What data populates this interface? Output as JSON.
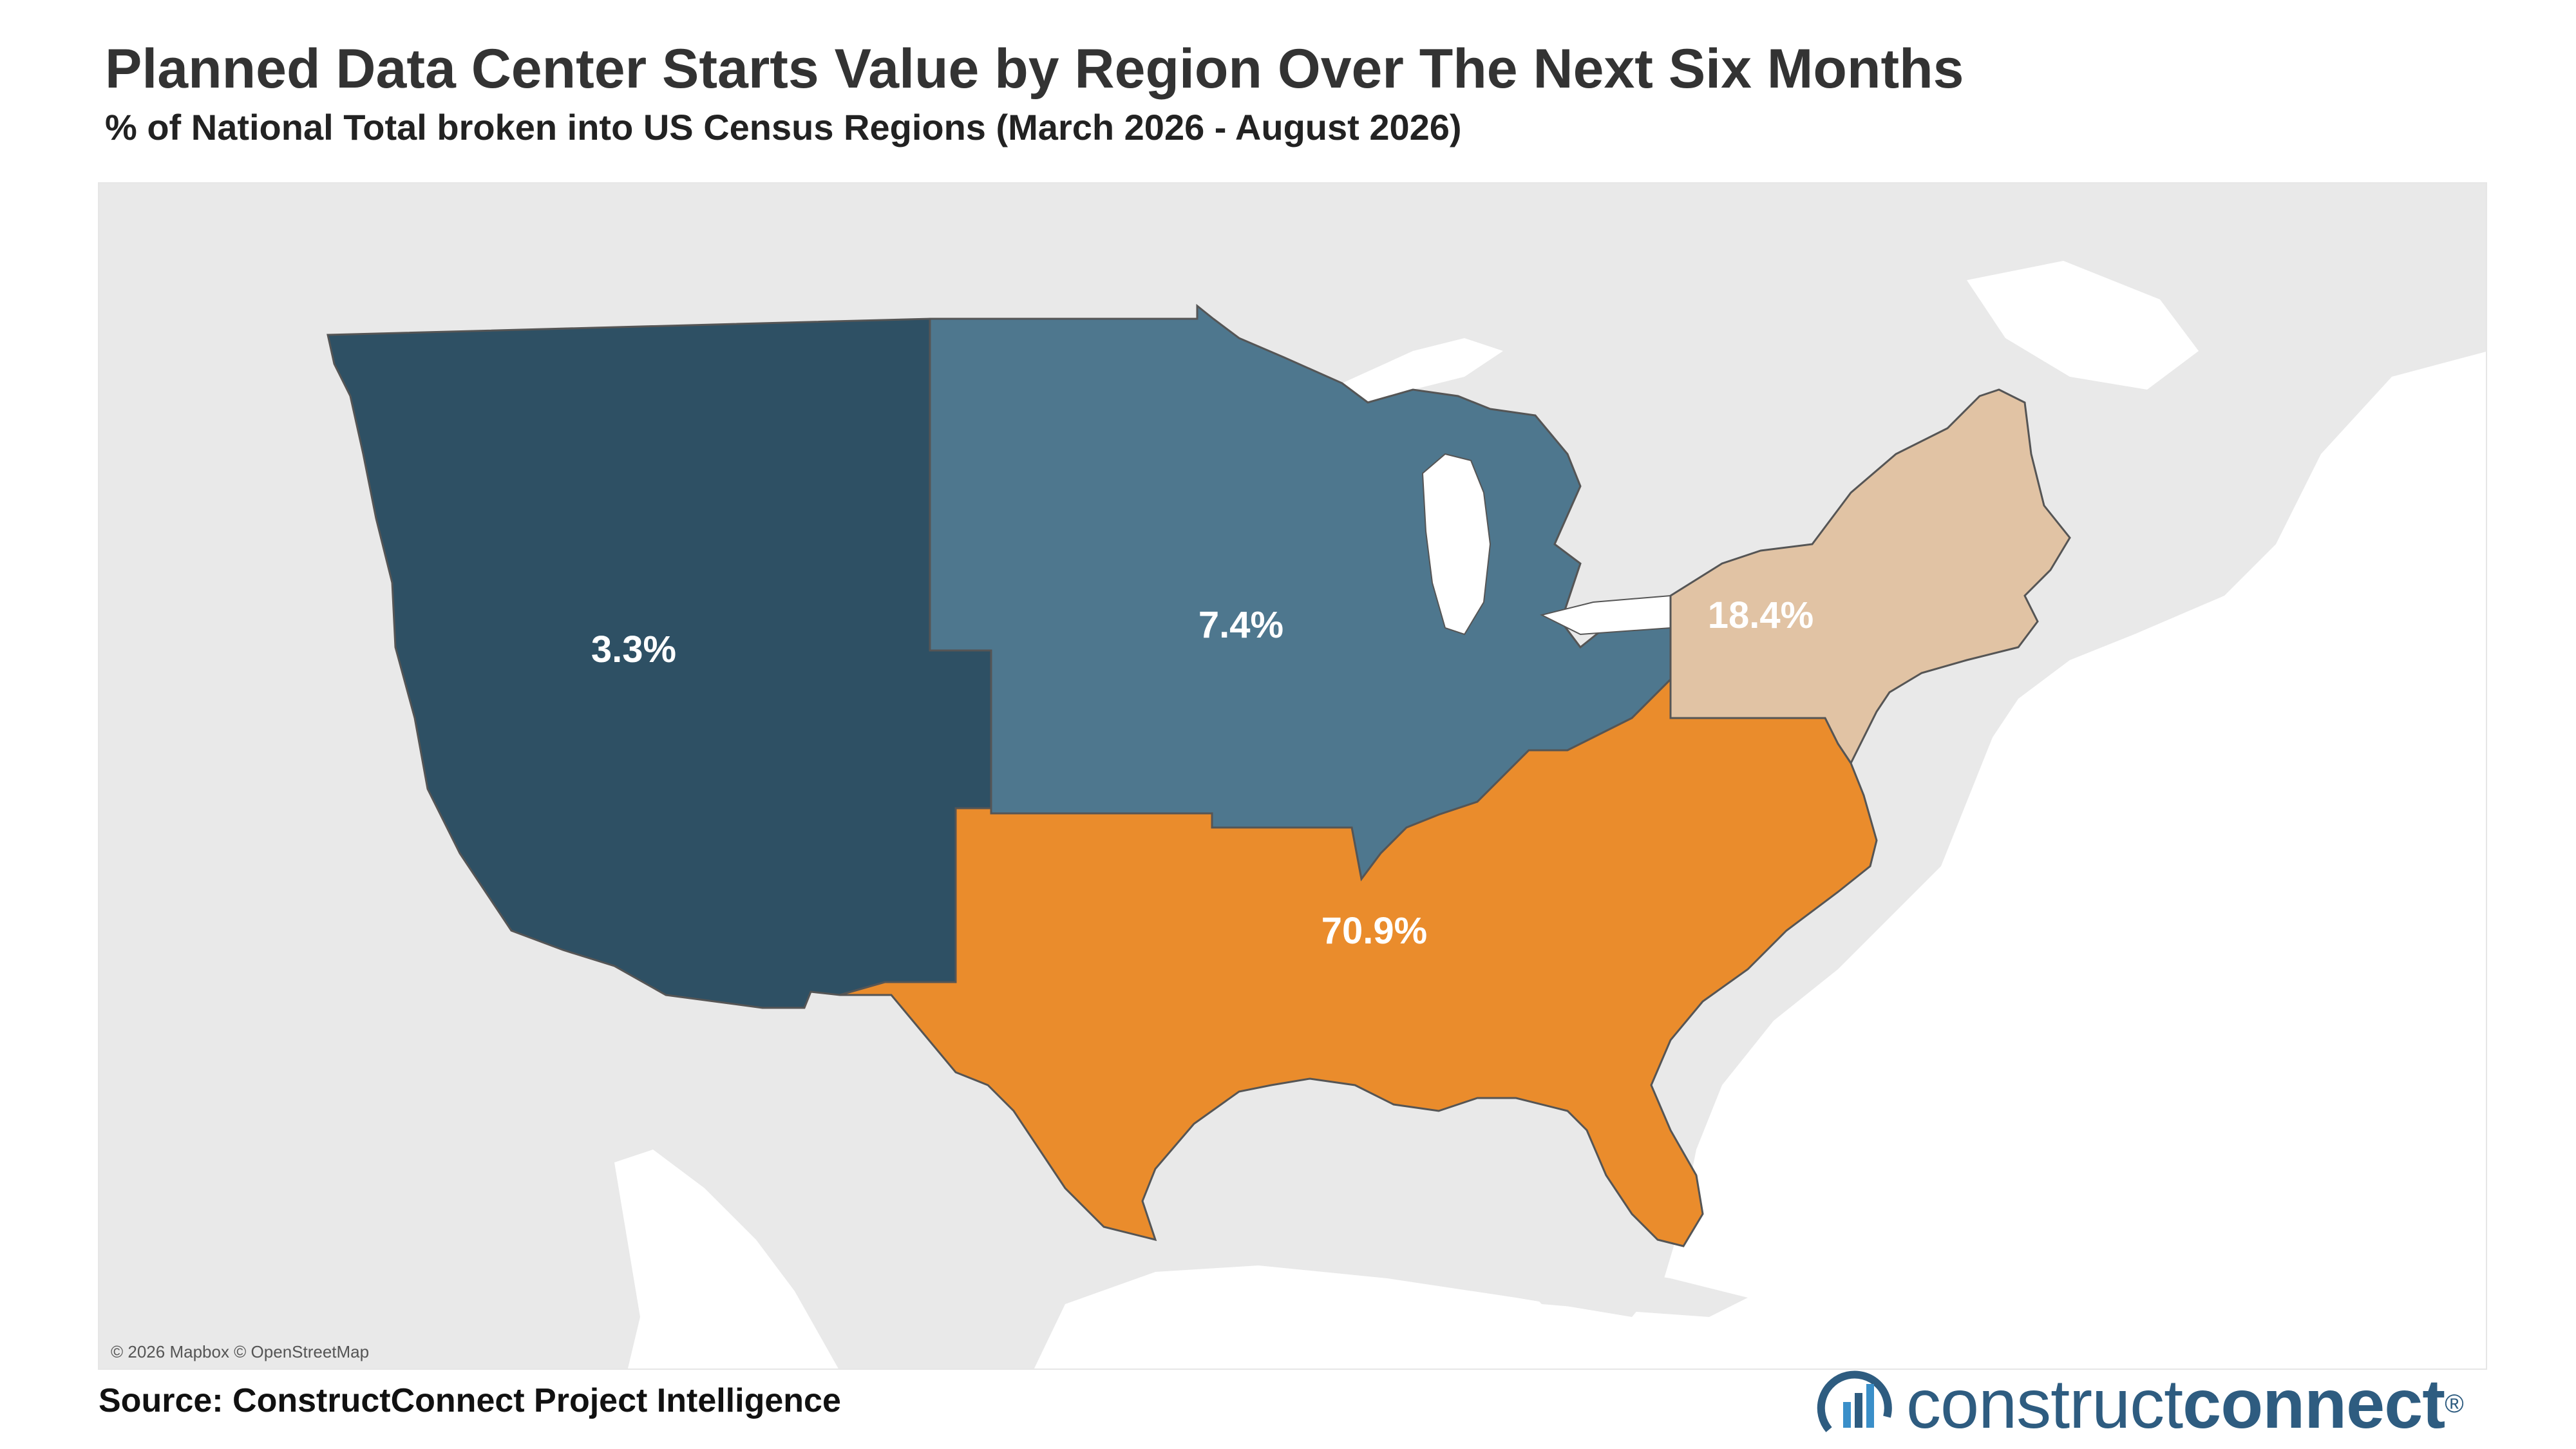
{
  "header": {
    "title": "Planned Data Center Starts Value by Region Over The Next Six Months",
    "subtitle": "% of National Total broken into US Census Regions (March 2026 - August 2026)"
  },
  "map": {
    "attribution": "© 2026 Mapbox © OpenStreetMap",
    "regions": [
      {
        "name": "West",
        "value_pct": 3.3,
        "label": "3.3%",
        "color": "#2e5064"
      },
      {
        "name": "Midwest",
        "value_pct": 7.4,
        "label": "7.4%",
        "color": "#4e778e"
      },
      {
        "name": "Northeast",
        "value_pct": 18.4,
        "label": "18.4%",
        "color": "#e1c3a4"
      },
      {
        "name": "South",
        "value_pct": 70.9,
        "label": "70.9%",
        "color": "#ea8c2c"
      }
    ],
    "basemap_land_color": "#e9e9e9",
    "basemap_water_color": "#ffffff"
  },
  "footer": {
    "source": "Source: ConstructConnect Project Intelligence",
    "logo_light": "construct",
    "logo_bold": "connect",
    "logo_mark": "®"
  }
}
